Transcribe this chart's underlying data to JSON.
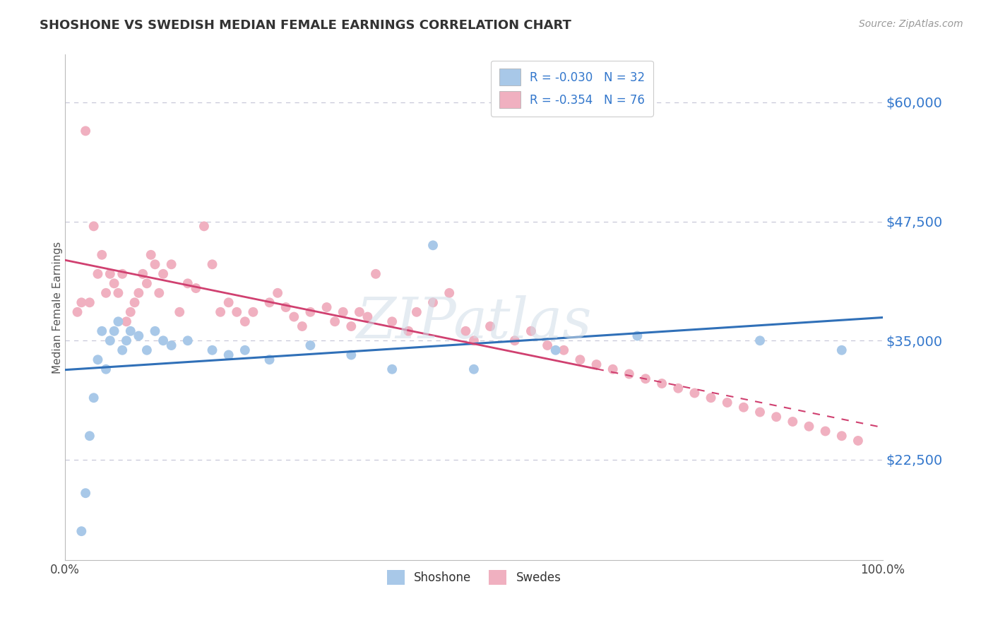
{
  "title": "SHOSHONE VS SWEDISH MEDIAN FEMALE EARNINGS CORRELATION CHART",
  "source_text": "Source: ZipAtlas.com",
  "ylabel": "Median Female Earnings",
  "xlim": [
    0.0,
    100.0
  ],
  "ylim": [
    12000,
    65000
  ],
  "yticks": [
    22500,
    35000,
    47500,
    60000
  ],
  "ytick_labels": [
    "$22,500",
    "$35,000",
    "$47,500",
    "$60,000"
  ],
  "xticks": [
    0.0,
    100.0
  ],
  "xtick_labels": [
    "0.0%",
    "100.0%"
  ],
  "shoshone_R": "-0.030",
  "shoshone_N": "32",
  "swedes_R": "-0.354",
  "swedes_N": "76",
  "color_blue": "#a8c8e8",
  "color_blue_line": "#3070b8",
  "color_pink": "#f0b0c0",
  "color_pink_line": "#d04070",
  "color_legend_text": "#3377cc",
  "background_color": "#ffffff",
  "grid_color": "#c8c8d8",
  "shoshone_x": [
    2.0,
    2.5,
    3.0,
    3.5,
    4.0,
    4.5,
    5.0,
    5.5,
    6.0,
    6.5,
    7.0,
    7.5,
    8.0,
    9.0,
    10.0,
    11.0,
    12.0,
    13.0,
    15.0,
    18.0,
    20.0,
    22.0,
    25.0,
    30.0,
    35.0,
    40.0,
    45.0,
    50.0,
    60.0,
    70.0,
    85.0,
    95.0
  ],
  "shoshone_y": [
    15000,
    19000,
    25000,
    29000,
    33000,
    36000,
    32000,
    35000,
    36000,
    37000,
    34000,
    35000,
    36000,
    35500,
    34000,
    36000,
    35000,
    34500,
    35000,
    34000,
    33500,
    34000,
    33000,
    34500,
    33500,
    32000,
    45000,
    32000,
    34000,
    35500,
    35000,
    34000
  ],
  "swedes_x": [
    1.5,
    2.0,
    2.5,
    3.0,
    3.5,
    4.0,
    4.5,
    5.0,
    5.5,
    6.0,
    6.5,
    7.0,
    7.5,
    8.0,
    8.5,
    9.0,
    9.5,
    10.0,
    10.5,
    11.0,
    11.5,
    12.0,
    13.0,
    14.0,
    15.0,
    16.0,
    17.0,
    18.0,
    19.0,
    20.0,
    21.0,
    22.0,
    23.0,
    25.0,
    26.0,
    27.0,
    28.0,
    29.0,
    30.0,
    32.0,
    33.0,
    34.0,
    35.0,
    36.0,
    37.0,
    38.0,
    40.0,
    42.0,
    43.0,
    45.0,
    47.0,
    49.0,
    50.0,
    52.0,
    55.0,
    57.0,
    59.0,
    61.0,
    63.0,
    65.0,
    67.0,
    69.0,
    71.0,
    73.0,
    75.0,
    77.0,
    79.0,
    81.0,
    83.0,
    85.0,
    87.0,
    89.0,
    91.0,
    93.0,
    95.0,
    97.0
  ],
  "swedes_y": [
    38000,
    39000,
    57000,
    39000,
    47000,
    42000,
    44000,
    40000,
    42000,
    41000,
    40000,
    42000,
    37000,
    38000,
    39000,
    40000,
    42000,
    41000,
    44000,
    43000,
    40000,
    42000,
    43000,
    38000,
    41000,
    40500,
    47000,
    43000,
    38000,
    39000,
    38000,
    37000,
    38000,
    39000,
    40000,
    38500,
    37500,
    36500,
    38000,
    38500,
    37000,
    38000,
    36500,
    38000,
    37500,
    42000,
    37000,
    36000,
    38000,
    39000,
    40000,
    36000,
    35000,
    36500,
    35000,
    36000,
    34500,
    34000,
    33000,
    32500,
    32000,
    31500,
    31000,
    30500,
    30000,
    29500,
    29000,
    28500,
    28000,
    27500,
    27000,
    26500,
    26000,
    25500,
    25000,
    24500
  ]
}
